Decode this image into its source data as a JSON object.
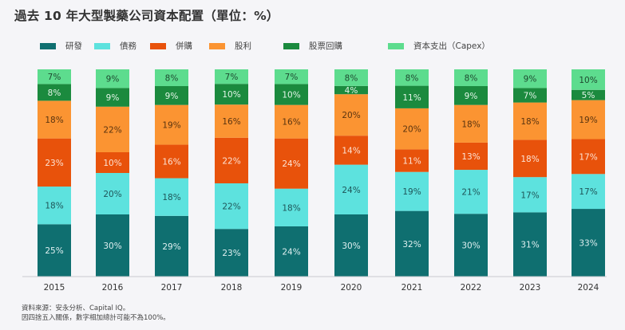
{
  "title": "過去 10 年大型製藥公司資本配置（單位：%）",
  "footnotes": [
    "資料來源：安永分析、Capital IQ。",
    "因四捨五入關係，數字相加總計可能不為100%。"
  ],
  "chart_data": {
    "type": "bar",
    "stacked": true,
    "title": "過去 10 年大型製藥公司資本配置（單位：%）",
    "xlabel": "",
    "ylabel": "",
    "ylim": [
      0,
      100
    ],
    "grid": false,
    "legend_position": "top",
    "value_suffix": "%",
    "categories": [
      "2015",
      "2016",
      "2017",
      "2018",
      "2019",
      "2020",
      "2021",
      "2022",
      "2023",
      "2024"
    ],
    "series": [
      {
        "name": "研發",
        "color": "#0f6f70",
        "label_color": "#dfeff0",
        "values": [
          25,
          30,
          29,
          23,
          24,
          30,
          32,
          30,
          31,
          33
        ]
      },
      {
        "name": "債務",
        "color": "#5de2de",
        "label_color": "#1f5558",
        "values": [
          18,
          20,
          18,
          22,
          18,
          24,
          19,
          21,
          17,
          17
        ]
      },
      {
        "name": "併購",
        "color": "#e8520b",
        "label_color": "#fde3d4",
        "values": [
          23,
          10,
          16,
          22,
          24,
          14,
          11,
          13,
          18,
          17
        ]
      },
      {
        "name": "股利",
        "color": "#fb9432",
        "label_color": "#5a3410",
        "values": [
          18,
          22,
          19,
          16,
          16,
          20,
          20,
          18,
          18,
          19
        ]
      },
      {
        "name": "股票回購",
        "color": "#1b8a3e",
        "label_color": "#e3f5e8",
        "values": [
          8,
          9,
          9,
          10,
          10,
          4,
          11,
          9,
          7,
          5
        ]
      },
      {
        "name": "資本支出（Capex）",
        "color": "#5ddc8e",
        "label_color": "#1e4a30",
        "values": [
          7,
          9,
          8,
          7,
          7,
          8,
          8,
          8,
          9,
          10
        ]
      }
    ]
  }
}
